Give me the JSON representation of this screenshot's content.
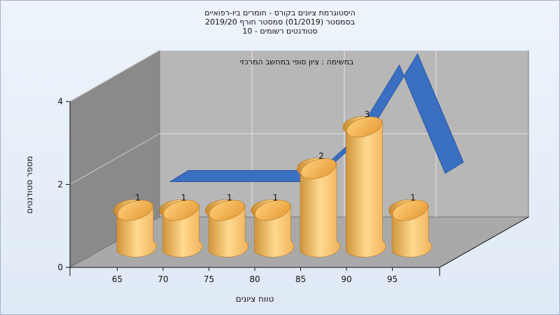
{
  "title_lines": [
    "היסטוגרמת ציונים בקורס - חומרים ביו-רפואיים",
    "בסמסטר  (01/2019)  סמסטר חורף 2019/20",
    "סטודנטים רשומים - 10"
  ],
  "chart_data": {
    "type": "bar",
    "subtitle": "במשימה : ציון סופי במחשב המרכזי",
    "categories": [
      "65",
      "70",
      "75",
      "80",
      "85",
      "90",
      "95"
    ],
    "values": [
      1,
      1,
      1,
      1,
      2,
      3,
      1
    ],
    "series": [
      {
        "values": [
          1,
          1,
          1,
          1,
          2,
          3,
          1
        ],
        "color": "#f0b35c"
      },
      {
        "values": [
          1,
          1,
          1,
          1,
          2,
          3.8,
          1.2
        ],
        "color": "#3a6fc2"
      }
    ],
    "xlabel": "טווח ציונים",
    "ylabel": "מספר סטודנטים",
    "yticks": [
      "0",
      "2",
      "4"
    ],
    "ylim": [
      0,
      4
    ],
    "grid": true,
    "legend": false
  },
  "colors": {
    "bar": "#f0b35c",
    "bar_dark": "#c98a2e",
    "bar_light": "#ffd98f",
    "ribbon": "#3a6fc2",
    "back_wall": "#b7b7b7",
    "side_wall": "#8a8a8a",
    "floor": "#a9a9a9"
  }
}
